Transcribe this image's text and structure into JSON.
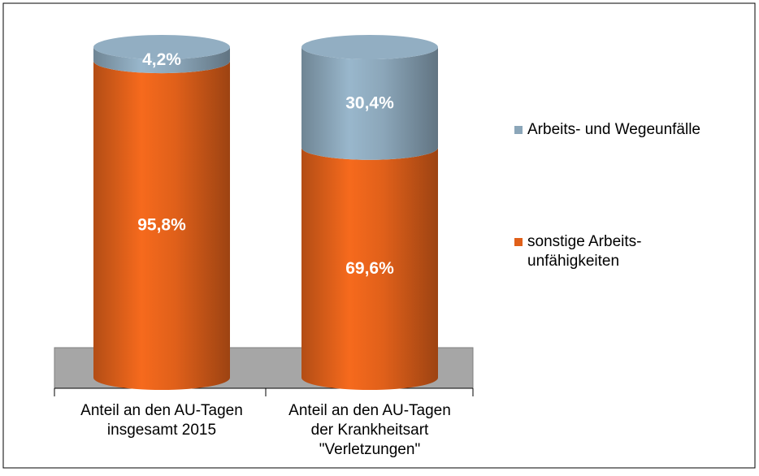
{
  "chart_data": {
    "type": "bar",
    "stacked": true,
    "style": "cylinder",
    "categories": [
      "Anteil an den AU-Tagen\ninsgesamt 2015",
      "Anteil an den AU-Tagen\nder Krankheitsart\n\"Verletzungen\""
    ],
    "series": [
      {
        "name": "sonstige Arbeits-\nunfähigkeiten",
        "color": "#e0601a",
        "values": [
          95.8,
          69.6
        ],
        "value_labels": [
          "95,8%",
          "69,6%"
        ]
      },
      {
        "name": "Arbeits- und Wegeunfälle",
        "color": "#8ba6b9",
        "values": [
          4.2,
          30.4
        ],
        "value_labels": [
          "4,2%",
          "30,4%"
        ]
      }
    ],
    "ylim": [
      0,
      100
    ],
    "legend": "right"
  }
}
